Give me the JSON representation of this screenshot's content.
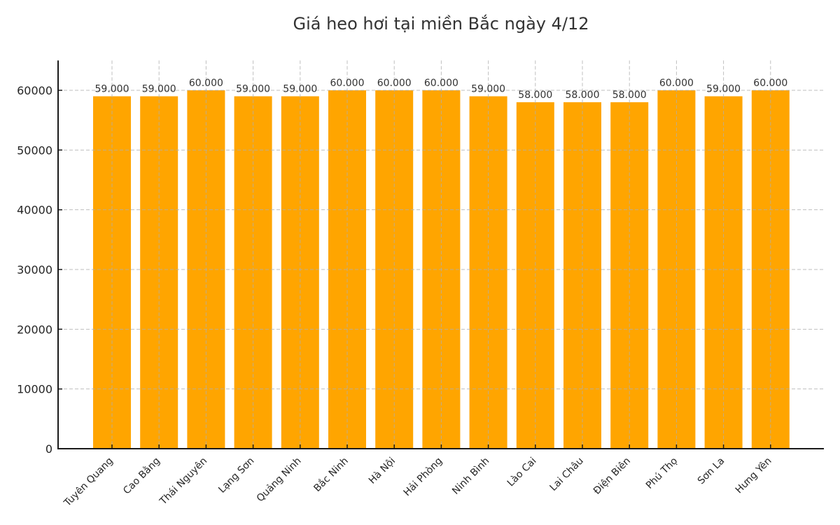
{
  "chart_data": {
    "type": "bar",
    "title": "Giá heo hơi tại miền Bắc ngày 4/12",
    "xlabel": "",
    "ylabel": "",
    "categories": [
      "Tuyên Quang",
      "Cao Bằng",
      "Thái Nguyên",
      "Lạng Sơn",
      "Quảng Ninh",
      "Bắc Ninh",
      "Hà Nội",
      "Hải Phòng",
      "Ninh Bình",
      "Lào Cai",
      "Lai Châu",
      "Điện Biên",
      "Phú Thọ",
      "Sơn La",
      "Hưng Yên"
    ],
    "values": [
      59000,
      59000,
      60000,
      59000,
      59000,
      60000,
      60000,
      60000,
      59000,
      58000,
      58000,
      58000,
      60000,
      59000,
      60000
    ],
    "data_labels": [
      "59.000",
      "59.000",
      "60.000",
      "59.000",
      "59.000",
      "60.000",
      "60.000",
      "60.000",
      "59.000",
      "58.000",
      "58.000",
      "58.000",
      "60.000",
      "59.000",
      "60.000"
    ],
    "ylim": [
      0,
      65000
    ],
    "yticks": [
      0,
      10000,
      20000,
      30000,
      40000,
      50000,
      60000
    ],
    "grid": true,
    "bar_color": "#FFA500",
    "legend": null
  }
}
